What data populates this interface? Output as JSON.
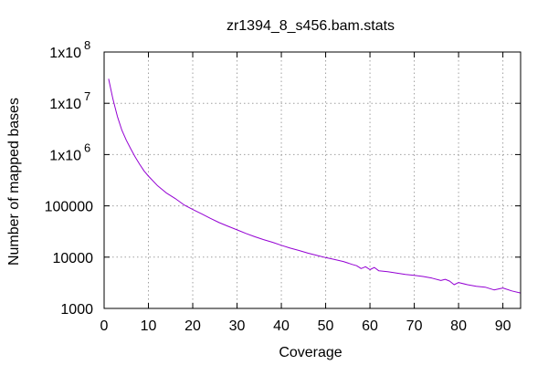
{
  "chart_data": {
    "type": "line",
    "title": "zr1394_8_s456.bam.stats",
    "xlabel": "Coverage",
    "ylabel": "Number of mapped bases",
    "xscale": "linear",
    "yscale": "log",
    "xlim": [
      0,
      94
    ],
    "ylim": [
      1000,
      100000000
    ],
    "grid": true,
    "legend": "none",
    "x_ticks": [
      0,
      10,
      20,
      30,
      40,
      50,
      60,
      70,
      80,
      90
    ],
    "x_tick_labels": [
      "0",
      "10",
      "20",
      "30",
      "40",
      "50",
      "60",
      "70",
      "80",
      "90"
    ],
    "y_ticks": [
      1000,
      10000,
      100000,
      1000000,
      10000000,
      100000000
    ],
    "y_tick_labels": [
      {
        "base": "1000",
        "exp": ""
      },
      {
        "base": "10000",
        "exp": ""
      },
      {
        "base": "100000",
        "exp": ""
      },
      {
        "base": "1x10",
        "exp": "6"
      },
      {
        "base": "1x10",
        "exp": "7"
      },
      {
        "base": "1x10",
        "exp": "8"
      }
    ],
    "series": [
      {
        "color": "#9400d3",
        "x": [
          1,
          2,
          3,
          4,
          5,
          6,
          7,
          8,
          9,
          10,
          12,
          14,
          16,
          18,
          20,
          22,
          24,
          26,
          28,
          30,
          32,
          34,
          36,
          38,
          40,
          42,
          44,
          46,
          48,
          50,
          52,
          54,
          56,
          57,
          58,
          59,
          60,
          61,
          62,
          64,
          66,
          68,
          70,
          72,
          74,
          76,
          77,
          78,
          79,
          80,
          82,
          84,
          86,
          88,
          90,
          92,
          94
        ],
        "y": [
          30000000,
          12000000,
          5500000,
          3000000,
          1900000,
          1300000,
          900000,
          650000,
          480000,
          380000,
          250000,
          180000,
          140000,
          105000,
          85000,
          70000,
          57000,
          47000,
          40000,
          34000,
          29000,
          25000,
          22000,
          19500,
          17000,
          15000,
          13500,
          12000,
          10800,
          9800,
          9000,
          8200,
          7200,
          6800,
          6000,
          6500,
          5700,
          6300,
          5400,
          5200,
          4900,
          4600,
          4400,
          4200,
          3900,
          3500,
          3700,
          3400,
          2900,
          3200,
          2900,
          2700,
          2600,
          2300,
          2500,
          2200,
          2000
        ]
      }
    ]
  }
}
